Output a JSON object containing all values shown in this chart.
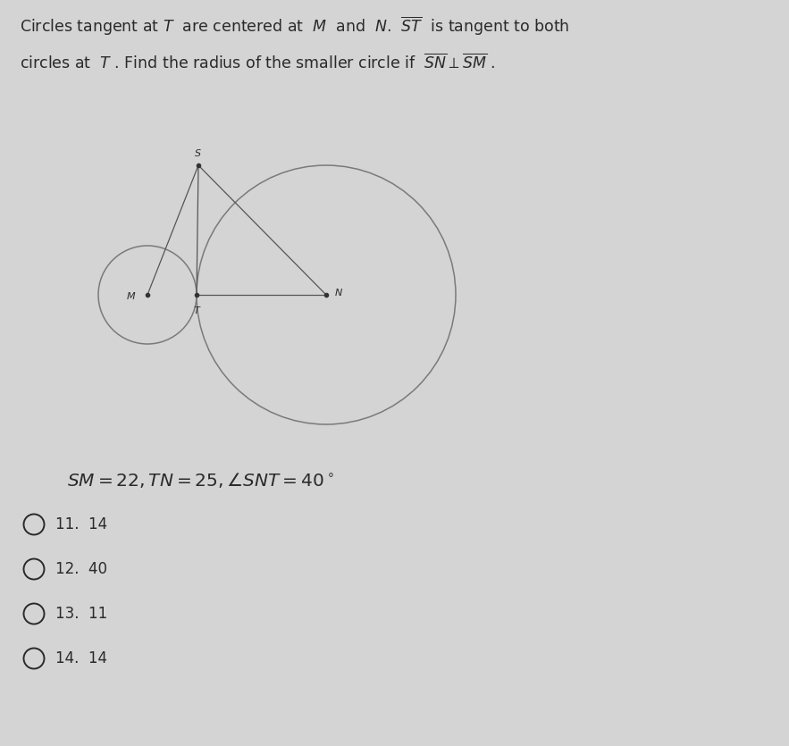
{
  "bg_color": "#d4d4d4",
  "title_line1": "Circles tangent at $T$  are centered at  $M$  and  $N$.  $\\overline{ST}$  is tangent to both",
  "title_line2": "circles at  $T$ . Find the radius of the smaller circle if  $\\overline{SN} \\perp \\overline{SM}$ .",
  "formula": "$SM = 22, TN = 25, \\angle SNT = 40^\\circ$",
  "choices": [
    "11.  14",
    "12.  40",
    "13.  11",
    "14.  14"
  ],
  "text_color": "#2a2a2a",
  "circle_color": "#7a7a7a",
  "line_color": "#555555",
  "dot_color": "#333333",
  "r_small": 0.55,
  "r_large": 1.45,
  "ox": 1.65,
  "oy": 5.05
}
